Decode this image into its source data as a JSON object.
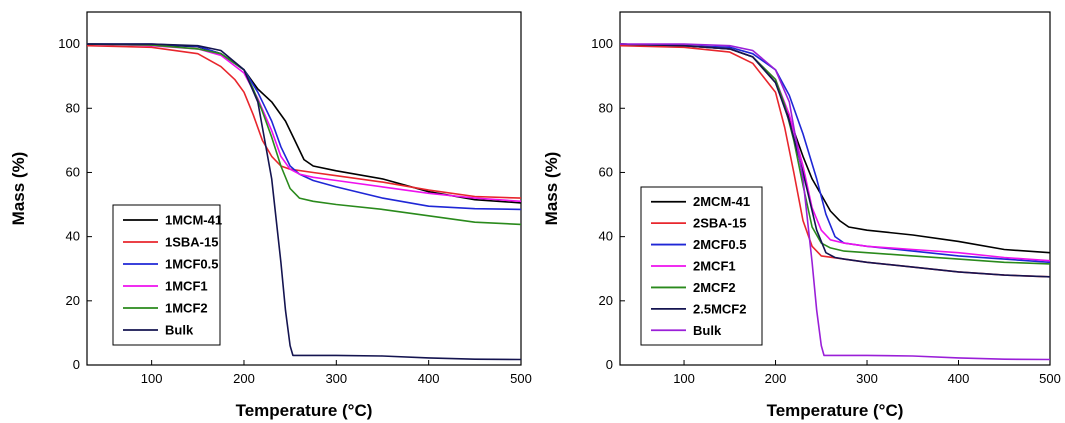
{
  "chart_data": [
    {
      "type": "line",
      "xlabel": "Temperature (°C)",
      "ylabel": "Mass (%)",
      "xlim": [
        30,
        500
      ],
      "ylim": [
        0,
        110
      ],
      "xticks": [
        100,
        200,
        300,
        400,
        500
      ],
      "yticks": [
        0,
        20,
        40,
        60,
        80,
        100
      ],
      "grid": false,
      "legend_position": "bottom-left",
      "series": [
        {
          "name": "1MCM-41",
          "color": "#000000",
          "x": [
            30,
            100,
            150,
            175,
            200,
            215,
            230,
            245,
            255,
            265,
            275,
            300,
            350,
            400,
            450,
            500
          ],
          "y": [
            100,
            99.8,
            99.2,
            97,
            92,
            86,
            82,
            76,
            70,
            64,
            62,
            60.5,
            58,
            54,
            51.5,
            50.5
          ]
        },
        {
          "name": "1SBA-15",
          "color": "#e8262d",
          "x": [
            30,
            100,
            150,
            175,
            190,
            200,
            210,
            220,
            230,
            240,
            250,
            275,
            300,
            350,
            400,
            450,
            500
          ],
          "y": [
            99.5,
            99,
            97,
            93,
            89,
            85,
            78,
            70,
            65,
            62,
            61,
            60,
            59,
            57,
            54.5,
            52.5,
            52
          ]
        },
        {
          "name": "1MCF0.5",
          "color": "#1f27d6",
          "x": [
            30,
            100,
            150,
            175,
            200,
            215,
            230,
            240,
            250,
            260,
            275,
            300,
            350,
            400,
            450,
            500
          ],
          "y": [
            100,
            100,
            99.3,
            97,
            92,
            85,
            76,
            68,
            62,
            59.5,
            57.5,
            55.5,
            52,
            49.5,
            48.7,
            48.5
          ]
        },
        {
          "name": "1MCF1",
          "color": "#ee11ee",
          "x": [
            30,
            100,
            150,
            175,
            200,
            215,
            230,
            240,
            250,
            260,
            275,
            300,
            350,
            400,
            450,
            500
          ],
          "y": [
            100,
            99.5,
            98.5,
            96.5,
            91,
            83,
            73,
            65,
            61,
            59.5,
            58.5,
            57.5,
            55.5,
            53.5,
            52,
            51
          ]
        },
        {
          "name": "1MCF2",
          "color": "#2a8a1c",
          "x": [
            30,
            100,
            150,
            175,
            200,
            210,
            220,
            230,
            240,
            250,
            260,
            275,
            300,
            350,
            400,
            450,
            500
          ],
          "y": [
            100,
            99.7,
            98.5,
            97,
            92,
            86,
            79,
            71,
            62,
            55,
            52,
            51,
            50,
            48.5,
            46.5,
            44.5,
            43.8
          ]
        },
        {
          "name": "Bulk",
          "color": "#141450",
          "x": [
            30,
            100,
            150,
            175,
            200,
            215,
            230,
            240,
            245,
            250,
            253,
            260,
            300,
            350,
            400,
            450,
            500
          ],
          "y": [
            100,
            100,
            99.5,
            98,
            92,
            82,
            58,
            32,
            17,
            6,
            3,
            3,
            3,
            2.8,
            2.2,
            1.8,
            1.7
          ]
        }
      ]
    },
    {
      "type": "line",
      "xlabel": "Temperature (°C)",
      "ylabel": "Mass (%)",
      "xlim": [
        30,
        500
      ],
      "ylim": [
        0,
        110
      ],
      "xticks": [
        100,
        200,
        300,
        400,
        500
      ],
      "yticks": [
        0,
        20,
        40,
        60,
        80,
        100
      ],
      "grid": false,
      "legend_position": "bottom-left",
      "series": [
        {
          "name": "2MCM-41",
          "color": "#000000",
          "x": [
            30,
            100,
            150,
            175,
            200,
            215,
            230,
            240,
            250,
            260,
            270,
            280,
            300,
            350,
            400,
            450,
            500
          ],
          "y": [
            100,
            99.5,
            98.5,
            96,
            88,
            77,
            65,
            58,
            53,
            48,
            45,
            43,
            42,
            40.5,
            38.5,
            36,
            35
          ]
        },
        {
          "name": "2SBA-15",
          "color": "#e8262d",
          "x": [
            30,
            100,
            150,
            175,
            200,
            210,
            220,
            230,
            240,
            250,
            275,
            300,
            350,
            400,
            450,
            500
          ],
          "y": [
            99.5,
            99,
            97.5,
            94,
            85,
            74,
            60,
            45,
            37,
            34,
            33,
            32,
            30.5,
            29,
            28,
            27.5
          ]
        },
        {
          "name": "2MCF0.5",
          "color": "#1f27d6",
          "x": [
            30,
            100,
            150,
            175,
            200,
            215,
            230,
            245,
            255,
            265,
            275,
            300,
            350,
            400,
            450,
            500
          ],
          "y": [
            100,
            99.5,
            99,
            97,
            92,
            84,
            72,
            58,
            47,
            40,
            38,
            37,
            35.5,
            34,
            33,
            32
          ]
        },
        {
          "name": "2MCF1",
          "color": "#ee11ee",
          "x": [
            30,
            100,
            150,
            175,
            200,
            215,
            230,
            240,
            250,
            260,
            275,
            300,
            350,
            400,
            450,
            500
          ],
          "y": [
            100,
            99.5,
            98.5,
            96,
            89,
            78,
            62,
            49,
            42,
            39,
            38,
            37,
            36,
            35,
            33.5,
            32.5
          ]
        },
        {
          "name": "2MCF2",
          "color": "#2a8a1c",
          "x": [
            30,
            100,
            150,
            175,
            200,
            210,
            220,
            230,
            240,
            250,
            260,
            275,
            300,
            350,
            400,
            450,
            500
          ],
          "y": [
            100,
            99.5,
            98.5,
            96,
            89,
            81,
            70,
            56,
            43,
            38,
            36.5,
            35.5,
            35,
            34,
            33,
            32,
            31.5
          ]
        },
        {
          "name": "2.5MCF2",
          "color": "#141450",
          "x": [
            30,
            100,
            150,
            175,
            200,
            215,
            230,
            245,
            255,
            265,
            275,
            300,
            350,
            400,
            450,
            500
          ],
          "y": [
            100,
            99.5,
            98.5,
            96,
            88,
            76,
            60,
            42,
            35,
            33.5,
            33,
            32,
            30.5,
            29,
            28,
            27.5
          ]
        },
        {
          "name": "Bulk",
          "color": "#9a1fd8",
          "x": [
            30,
            100,
            150,
            175,
            200,
            215,
            230,
            240,
            245,
            250,
            253,
            260,
            300,
            350,
            400,
            450,
            500
          ],
          "y": [
            100,
            100,
            99.5,
            98,
            92,
            82,
            58,
            32,
            17,
            6,
            3,
            3,
            3,
            2.8,
            2.2,
            1.8,
            1.7
          ]
        }
      ]
    }
  ]
}
